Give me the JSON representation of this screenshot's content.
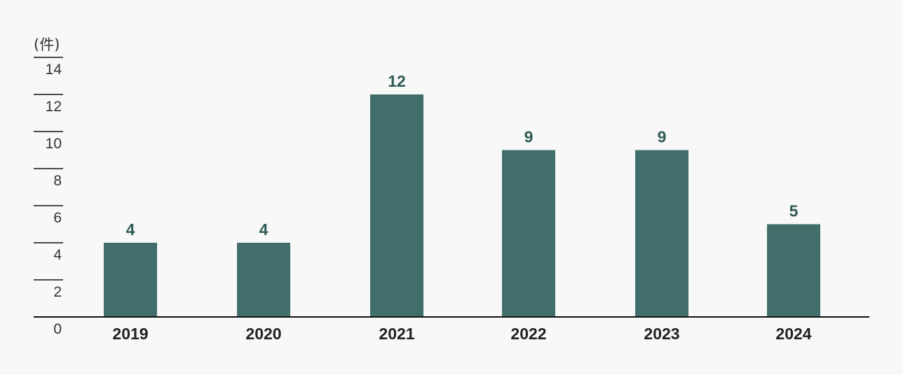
{
  "chart_data": {
    "type": "bar",
    "unit_label": "(件)",
    "categories": [
      "2019",
      "2020",
      "2021",
      "2022",
      "2023",
      "2024"
    ],
    "values": [
      4,
      4,
      12,
      9,
      9,
      5
    ],
    "ylim": [
      0,
      14
    ],
    "yticks": [
      0,
      2,
      4,
      6,
      8,
      10,
      12,
      14
    ],
    "grid": false,
    "legend": "none",
    "colors": {
      "bar": "#416e6b",
      "value_label": "#2f5a56",
      "axis": "#111111",
      "background": "#f8f8f8"
    }
  }
}
